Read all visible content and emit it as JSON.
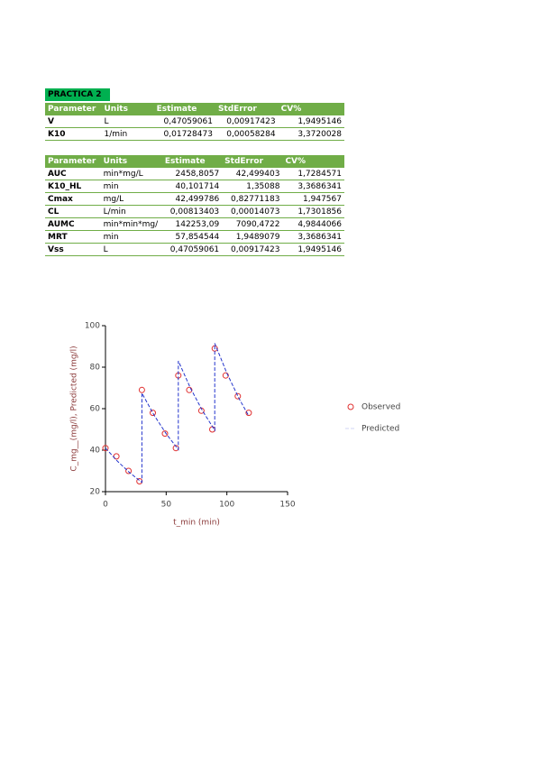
{
  "document": {
    "title": "PRACTICA 2",
    "table1": {
      "header": [
        "Parameter",
        "Units",
        "Estimate",
        "StdError",
        "CV%"
      ],
      "rows": [
        [
          "V",
          "L",
          "0,47059061",
          "0,00917423",
          "1,9495146"
        ],
        [
          "K10",
          "1/min",
          "0,01728473",
          "0,00058284",
          "3,3720028"
        ]
      ]
    },
    "table2": {
      "header": [
        "Parameter",
        "Units",
        "Estimate",
        "StdError",
        "CV%"
      ],
      "rows": [
        [
          "AUC",
          "min*mg/L",
          "2458,8057",
          "42,499403",
          "1,7284571"
        ],
        [
          "K10_HL",
          "min",
          "40,101714",
          "1,35088",
          "3,3686341"
        ],
        [
          "Cmax",
          "mg/L",
          "42,499786",
          "0,82771183",
          "1,947567"
        ],
        [
          "CL",
          "L/min",
          "0,00813403",
          "0,00014073",
          "1,7301856"
        ],
        [
          "AUMC",
          "min*min*mg/",
          "142253,09",
          "7090,4722",
          "4,9844066"
        ],
        [
          "MRT",
          "min",
          "57,854544",
          "1,9489079",
          "3,3686341"
        ],
        [
          "Vss",
          "L",
          "0,47059061",
          "0,00917423",
          "1,9495146"
        ]
      ]
    }
  },
  "chart_data": {
    "type": "line",
    "x_label": "t_min (min)",
    "y_label": "C_mg__(mg/l), Predicted (mg/l)",
    "xlim": [
      0,
      150
    ],
    "ylim": [
      20,
      100
    ],
    "xticks": [
      0,
      50,
      100,
      150
    ],
    "yticks": [
      20,
      40,
      60,
      80,
      100
    ],
    "series": [
      {
        "name": "Observed",
        "color": "#e03030",
        "marker": "circle",
        "x": [
          0,
          9,
          19,
          28,
          30,
          39,
          49,
          58,
          60,
          69,
          79,
          88,
          90,
          99,
          109,
          118
        ],
        "values": [
          41,
          37,
          30,
          25,
          69,
          58,
          48,
          41,
          76,
          69,
          59,
          50,
          89,
          76,
          66,
          58
        ]
      },
      {
        "name": "Predicted",
        "color": "#2233cc",
        "marker": "dashed-line",
        "x": [
          0,
          10,
          20,
          30,
          30,
          40,
          50,
          60,
          60,
          70,
          80,
          90,
          90,
          100,
          110,
          118
        ],
        "values": [
          41,
          34.6,
          29.1,
          24.5,
          67.5,
          56.9,
          47.9,
          40.3,
          83,
          69.9,
          58.9,
          49.6,
          91.5,
          77.1,
          64.9,
          56.5
        ]
      }
    ]
  }
}
